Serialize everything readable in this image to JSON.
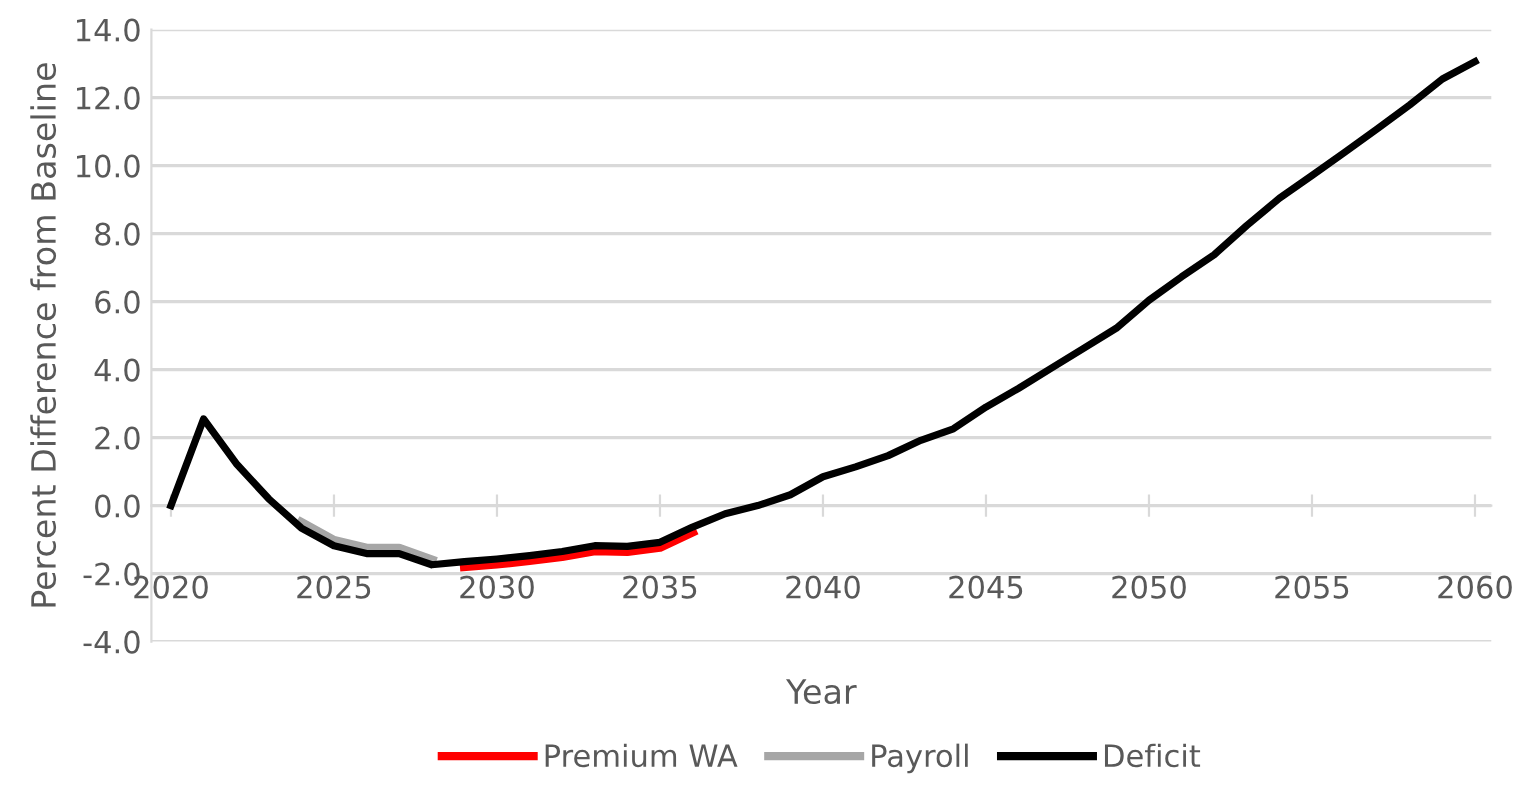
{
  "chart_data": {
    "type": "line",
    "xlabel": "Year",
    "ylabel": "Percent Difference from Baseline",
    "x": [
      2020,
      2021,
      2022,
      2023,
      2024,
      2025,
      2026,
      2027,
      2028,
      2029,
      2030,
      2031,
      2032,
      2033,
      2034,
      2035,
      2036,
      2037,
      2038,
      2039,
      2040,
      2041,
      2042,
      2043,
      2044,
      2045,
      2046,
      2047,
      2048,
      2049,
      2050,
      2051,
      2052,
      2053,
      2054,
      2055,
      2056,
      2057,
      2058,
      2059,
      2060
    ],
    "series": [
      {
        "name": "Premium WA",
        "color": "#ff0000",
        "values": [
          null,
          null,
          null,
          null,
          null,
          null,
          null,
          null,
          null,
          -1.8,
          -1.72,
          -1.62,
          -1.5,
          -1.33,
          -1.35,
          -1.23,
          -0.78,
          null,
          null,
          null,
          null,
          null,
          null,
          null,
          null,
          null,
          null,
          null,
          null,
          null,
          null,
          null,
          null,
          null,
          null,
          null,
          null,
          null,
          null,
          null,
          null
        ]
      },
      {
        "name": "Payroll",
        "color": "#a6a6a6",
        "values": [
          null,
          null,
          null,
          null,
          -0.5,
          -1.03,
          -1.26,
          -1.26,
          -1.6,
          null,
          null,
          null,
          null,
          null,
          null,
          null,
          null,
          null,
          null,
          null,
          null,
          null,
          null,
          null,
          null,
          null,
          null,
          null,
          null,
          null,
          null,
          null,
          null,
          null,
          null,
          null,
          null,
          null,
          null,
          null,
          null
        ]
      },
      {
        "name": "Deficit",
        "color": "#000000",
        "values": [
          0,
          2.55,
          1.24,
          0.2,
          -0.66,
          -1.18,
          -1.41,
          -1.41,
          -1.74,
          -1.65,
          -1.57,
          -1.47,
          -1.35,
          -1.18,
          -1.2,
          -1.08,
          -0.63,
          -0.24,
          0.0,
          0.32,
          0.85,
          1.14,
          1.47,
          1.92,
          2.26,
          2.9,
          3.45,
          4.04,
          4.63,
          5.22,
          6.04,
          6.73,
          7.38,
          8.24,
          9.04,
          9.71,
          10.39,
          11.08,
          11.79,
          12.55,
          13.06
        ]
      }
    ],
    "xlim": [
      2019.4,
      2060.5
    ],
    "xticks": [
      2020,
      2025,
      2030,
      2035,
      2040,
      2045,
      2050,
      2055,
      2060
    ],
    "ylim": [
      -4,
      14
    ],
    "yticks": [
      {
        "value": -4,
        "label": "-4.0"
      },
      {
        "value": -2,
        "label": "-2.0"
      },
      {
        "value": 0,
        "label": "0.0"
      },
      {
        "value": 2,
        "label": "2.0"
      },
      {
        "value": 4,
        "label": "4.0"
      },
      {
        "value": 6,
        "label": "6.0"
      },
      {
        "value": 8,
        "label": "8.0"
      },
      {
        "value": 10,
        "label": "10.0"
      },
      {
        "value": 12,
        "label": "12.0"
      },
      {
        "value": 14,
        "label": "14.0"
      }
    ],
    "grid": "y",
    "legend": "bottom",
    "marker": "none",
    "line_style": "solid"
  }
}
